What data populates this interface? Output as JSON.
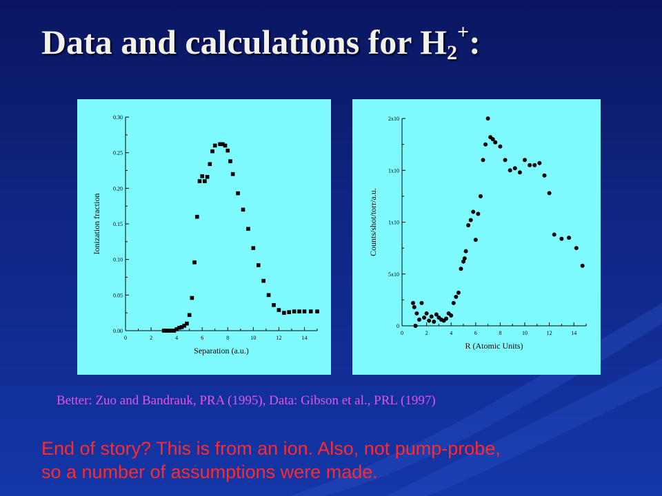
{
  "slide": {
    "title_main": "Data and calculations for H",
    "title_sub": "2",
    "title_sup": "+",
    "title_end": ":",
    "citation": "Better: Zuo and Bandrauk, PRA (1995), Data: Gibson et al., PRL (1997)",
    "story_line1": "End of story?  This is from an ion. Also, not pump-probe,",
    "story_line2": "so a number of assumptions were made.",
    "colors": {
      "panel": "#7ffbff",
      "title": "#f2f2ea",
      "citation": "#e055e6",
      "story": "#ff2a2a",
      "marks": "#000000"
    }
  },
  "chart_data": [
    {
      "type": "scatter",
      "marker": "square",
      "xlabel": "Separation (a.u.)",
      "ylabel": "Ionization fraction",
      "xlim": [
        0,
        15
      ],
      "ylim": [
        0,
        0.3
      ],
      "xticks": [
        "0",
        "2",
        "4",
        "6",
        "8",
        "10",
        "12",
        "14"
      ],
      "yticks": [
        "0.00",
        "0.05",
        "0.10",
        "0.15",
        "0.20",
        "0.25",
        "0.30"
      ],
      "x": [
        3.0,
        3.2,
        3.4,
        3.6,
        3.8,
        4.0,
        4.2,
        4.4,
        4.6,
        4.8,
        5.0,
        5.2,
        5.4,
        5.6,
        5.8,
        6.0,
        6.2,
        6.4,
        6.6,
        6.8,
        7.0,
        7.4,
        7.6,
        7.8,
        8.0,
        8.2,
        8.4,
        8.8,
        9.2,
        9.6,
        10.0,
        10.4,
        10.8,
        11.2,
        11.6,
        12.0,
        12.4,
        12.8,
        13.2,
        13.6,
        14.0,
        14.5,
        15.0
      ],
      "y": [
        0.0,
        0.0,
        0.0,
        0.0,
        0.0,
        0.002,
        0.004,
        0.005,
        0.007,
        0.01,
        0.022,
        0.046,
        0.096,
        0.16,
        0.21,
        0.217,
        0.21,
        0.216,
        0.234,
        0.252,
        0.26,
        0.262,
        0.262,
        0.26,
        0.253,
        0.238,
        0.22,
        0.193,
        0.17,
        0.143,
        0.116,
        0.092,
        0.07,
        0.05,
        0.036,
        0.029,
        0.025,
        0.026,
        0.027,
        0.027,
        0.027,
        0.027,
        0.027
      ]
    },
    {
      "type": "scatter",
      "marker": "circle",
      "xlabel": "R (Atomic Units)",
      "ylabel": "Counts/shot/torr/a.u.",
      "xlim": [
        0,
        15
      ],
      "ylim": [
        0,
        2
      ],
      "xticks": [
        "0",
        "2",
        "4",
        "6",
        "8",
        "10",
        "12",
        "14"
      ],
      "yticks": [
        "0",
        "5x10",
        "1x10",
        "1x10",
        "2x10"
      ],
      "x": [
        0.9,
        1.0,
        1.1,
        1.2,
        1.4,
        1.6,
        1.8,
        2.0,
        2.2,
        2.4,
        2.6,
        2.8,
        3.0,
        3.2,
        3.4,
        3.6,
        3.8,
        4.0,
        4.2,
        4.4,
        4.6,
        4.8,
        5.0,
        5.1,
        5.2,
        5.4,
        5.6,
        5.8,
        6.0,
        6.2,
        6.4,
        6.6,
        6.8,
        7.0,
        7.2,
        7.4,
        7.6,
        8.0,
        8.4,
        8.8,
        9.2,
        9.6,
        10.0,
        10.4,
        10.8,
        11.2,
        11.6,
        12.0,
        12.4,
        13.0,
        13.6,
        14.2,
        14.7
      ],
      "y": [
        0.22,
        0.18,
        0.0,
        0.12,
        0.06,
        0.22,
        0.08,
        0.12,
        0.05,
        0.09,
        0.04,
        0.11,
        0.08,
        0.06,
        0.05,
        0.07,
        0.12,
        0.1,
        0.22,
        0.28,
        0.32,
        0.55,
        0.62,
        0.65,
        0.72,
        0.97,
        1.02,
        1.1,
        0.83,
        1.08,
        1.25,
        1.6,
        1.75,
        2.0,
        1.82,
        1.8,
        1.77,
        1.73,
        1.6,
        1.5,
        1.52,
        1.48,
        1.6,
        1.55,
        1.55,
        1.57,
        1.45,
        1.28,
        0.88,
        0.84,
        0.85,
        0.75,
        0.58
      ]
    }
  ]
}
